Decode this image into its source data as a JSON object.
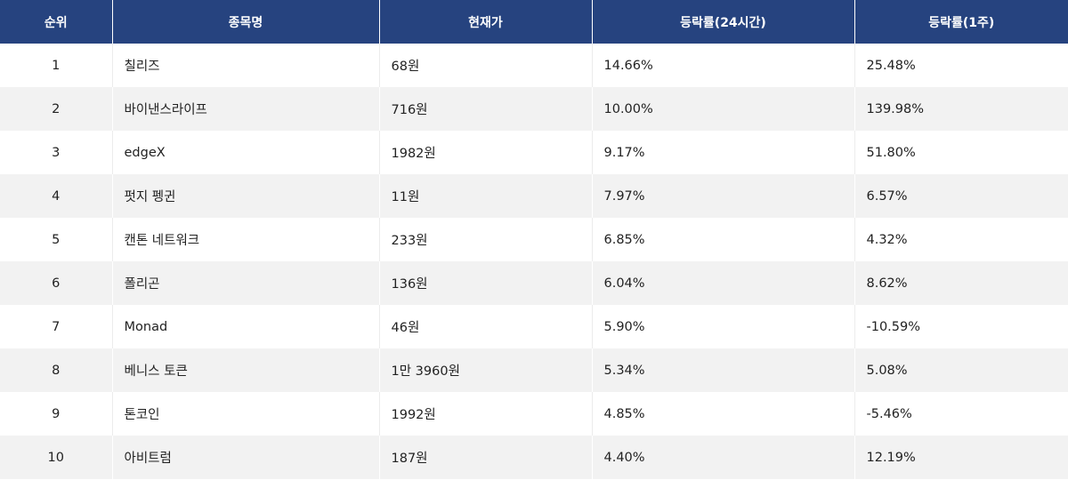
{
  "colors": {
    "header_bg": "#26437f",
    "header_text": "#ffffff",
    "row_even_bg": "#f2f2f2",
    "row_odd_bg": "#ffffff"
  },
  "table": {
    "headers": [
      "순위",
      "종목명",
      "현재가",
      "등락률(24시간)",
      "등락률(1주)"
    ],
    "rows": [
      {
        "rank": "1",
        "name": "칠리즈",
        "price": "68원",
        "change_24h": "14.66%",
        "change_1w": "25.48%"
      },
      {
        "rank": "2",
        "name": "바이낸스라이프",
        "price": "716원",
        "change_24h": "10.00%",
        "change_1w": "139.98%"
      },
      {
        "rank": "3",
        "name": "edgeX",
        "price": "1982원",
        "change_24h": "9.17%",
        "change_1w": "51.80%"
      },
      {
        "rank": "4",
        "name": "펏지 펭귄",
        "price": "11원",
        "change_24h": "7.97%",
        "change_1w": "6.57%"
      },
      {
        "rank": "5",
        "name": "캔톤 네트워크",
        "price": "233원",
        "change_24h": "6.85%",
        "change_1w": "4.32%"
      },
      {
        "rank": "6",
        "name": "폴리곤",
        "price": "136원",
        "change_24h": "6.04%",
        "change_1w": "8.62%"
      },
      {
        "rank": "7",
        "name": "Monad",
        "price": "46원",
        "change_24h": "5.90%",
        "change_1w": "-10.59%"
      },
      {
        "rank": "8",
        "name": "베니스 토큰",
        "price": "1만 3960원",
        "change_24h": "5.34%",
        "change_1w": "5.08%"
      },
      {
        "rank": "9",
        "name": "톤코인",
        "price": "1992원",
        "change_24h": "4.85%",
        "change_1w": "-5.46%"
      },
      {
        "rank": "10",
        "name": "아비트럼",
        "price": "187원",
        "change_24h": "4.40%",
        "change_1w": "12.19%"
      }
    ]
  }
}
